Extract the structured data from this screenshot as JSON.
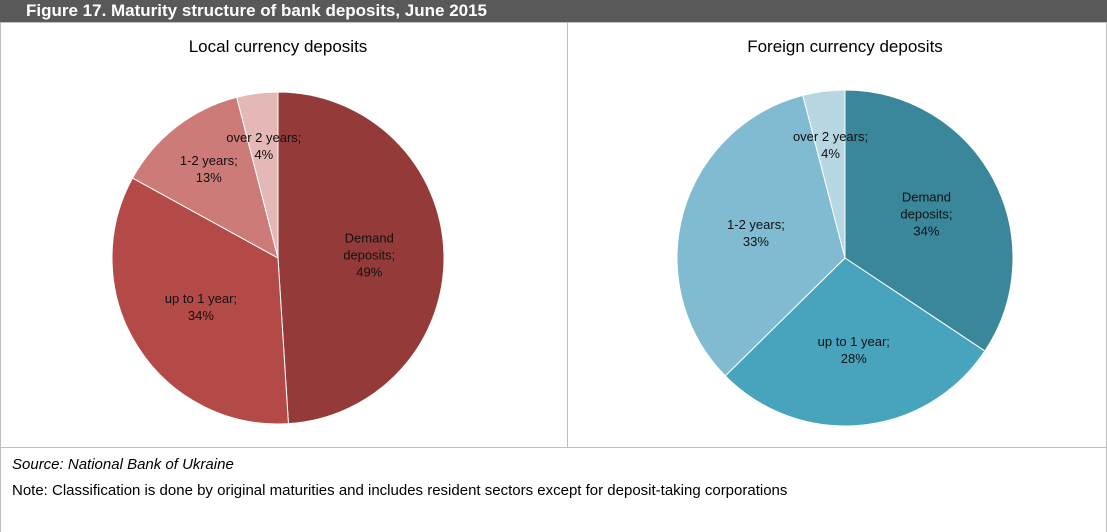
{
  "header": {
    "title": "Figure 17. Maturity structure of bank deposits, June 2015"
  },
  "chart_data": [
    {
      "type": "pie",
      "title": "Local currency deposits",
      "values": [
        49,
        34,
        13,
        4
      ],
      "value_labels": [
        "Demand deposits; 49%",
        "up to 1 year; 34%",
        "1-2 years; 13%",
        "over 2 years; 4%"
      ],
      "colors": [
        "#943b3a",
        "#b44a47",
        "#cd7b79",
        "#e3b8b7"
      ]
    },
    {
      "type": "pie",
      "title": "Foreign currency deposits",
      "values": [
        34,
        28,
        33,
        4
      ],
      "value_labels": [
        "Demand deposits; 34%",
        "up to 1 year; 28%",
        "1-2 years; 33%",
        "over 2 years; 4%"
      ],
      "colors": [
        "#3a879b",
        "#48a4bd",
        "#80bbd1",
        "#b7d7e3"
      ]
    }
  ],
  "footer": {
    "source": "Source: National Bank of Ukraine",
    "note": "Note: Classification is done by original maturities and includes resident sectors except for deposit-taking corporations"
  }
}
